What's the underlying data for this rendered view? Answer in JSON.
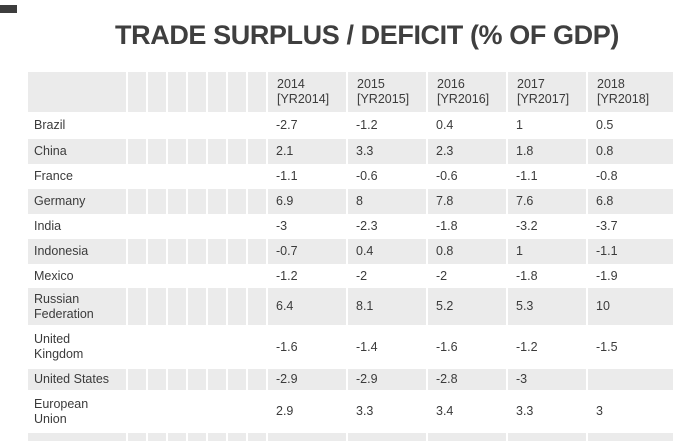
{
  "page": {
    "title": "TRADE SURPLUS / DEFICIT (% OF GDP)"
  },
  "table": {
    "column_headers": [
      "2014\n[YR2014]",
      "2015\n[YR2015]",
      "2016\n[YR2016]",
      "2017\n[YR2017]",
      "2018\n[YR2018]"
    ],
    "rows": [
      {
        "name": "Brazil",
        "values": [
          "-2.7",
          "-1.2",
          "0.4",
          "1",
          "0.5"
        ]
      },
      {
        "name": "China",
        "values": [
          "2.1",
          "3.3",
          "2.3",
          "1.8",
          "0.8"
        ]
      },
      {
        "name": "France",
        "values": [
          "-1.1",
          "-0.6",
          "-0.6",
          "-1.1",
          "-0.8"
        ]
      },
      {
        "name": "Germany",
        "values": [
          "6.9",
          "8",
          "7.8",
          "7.6",
          "6.8"
        ]
      },
      {
        "name": "India",
        "values": [
          "-3",
          "-2.3",
          "-1.8",
          "-3.2",
          "-3.7"
        ]
      },
      {
        "name": "Indonesia",
        "values": [
          "-0.7",
          "0.4",
          "0.8",
          "1",
          "-1.1"
        ]
      },
      {
        "name": "Mexico",
        "values": [
          "-1.2",
          "-2",
          "-2",
          "-1.8",
          "-1.9"
        ]
      },
      {
        "name": "Russian\nFederation",
        "values": [
          "6.4",
          "8.1",
          "5.2",
          "5.3",
          "10"
        ]
      },
      {
        "name": "United\nKingdom",
        "values": [
          "-1.6",
          "-1.4",
          "-1.6",
          "-1.2",
          "-1.5"
        ]
      },
      {
        "name": "United States",
        "values": [
          "-2.9",
          "-2.9",
          "-2.8",
          "-3",
          ""
        ]
      },
      {
        "name": "European\nUnion",
        "values": [
          "2.9",
          "3.3",
          "3.4",
          "3.3",
          "3"
        ]
      }
    ]
  },
  "chart_data": {
    "type": "table",
    "title": "TRADE SURPLUS / DEFICIT (% OF GDP)",
    "unit": "% of GDP",
    "categories": [
      "2014",
      "2015",
      "2016",
      "2017",
      "2018"
    ],
    "series": [
      {
        "name": "Brazil",
        "values": [
          -2.7,
          -1.2,
          0.4,
          1,
          0.5
        ]
      },
      {
        "name": "China",
        "values": [
          2.1,
          3.3,
          2.3,
          1.8,
          0.8
        ]
      },
      {
        "name": "France",
        "values": [
          -1.1,
          -0.6,
          -0.6,
          -1.1,
          -0.8
        ]
      },
      {
        "name": "Germany",
        "values": [
          6.9,
          8,
          7.8,
          7.6,
          6.8
        ]
      },
      {
        "name": "India",
        "values": [
          -3,
          -2.3,
          -1.8,
          -3.2,
          -3.7
        ]
      },
      {
        "name": "Indonesia",
        "values": [
          -0.7,
          0.4,
          0.8,
          1,
          -1.1
        ]
      },
      {
        "name": "Mexico",
        "values": [
          -1.2,
          -2,
          -2,
          -1.8,
          -1.9
        ]
      },
      {
        "name": "Russian Federation",
        "values": [
          6.4,
          8.1,
          5.2,
          5.3,
          10
        ]
      },
      {
        "name": "United Kingdom",
        "values": [
          -1.6,
          -1.4,
          -1.6,
          -1.2,
          -1.5
        ]
      },
      {
        "name": "United States",
        "values": [
          -2.9,
          -2.9,
          -2.8,
          -3,
          null
        ]
      },
      {
        "name": "European Union",
        "values": [
          2.9,
          3.3,
          3.4,
          3.3,
          3
        ]
      }
    ]
  },
  "colors": {
    "row_stripe": "#ebebeb",
    "text": "#3b3b3b",
    "title": "#3f3f3f",
    "background": "#ffffff"
  }
}
